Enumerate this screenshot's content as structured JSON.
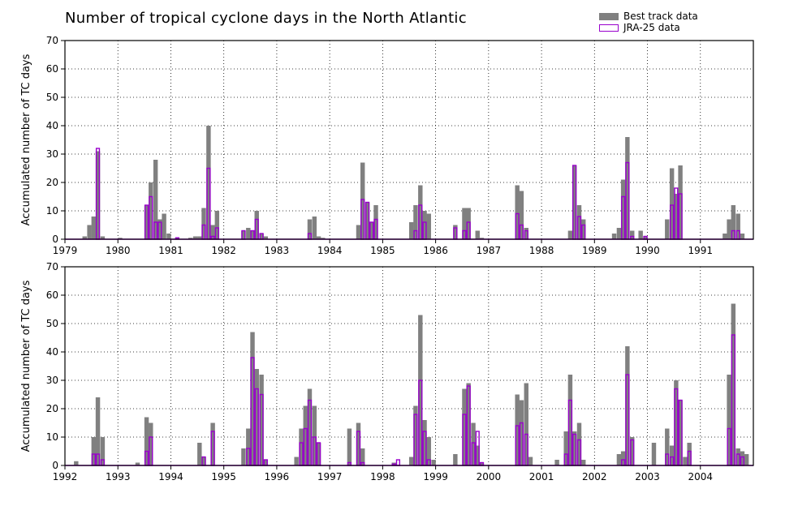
{
  "title": "Number of tropical cyclone days in the North Atlantic",
  "legend": {
    "best_track": "Best track data",
    "jra25": "JRA-25 data"
  },
  "colors": {
    "best_track": "#808080",
    "jra25": "#9900cc",
    "grid": "#000000"
  },
  "chart_data": [
    {
      "type": "bar",
      "title": "Number of tropical cyclone days in the North Atlantic",
      "ylabel": "Accumulated number of TC days",
      "xlabel": "",
      "ylim": [
        0,
        70
      ],
      "yticks": [
        0,
        10,
        20,
        30,
        40,
        50,
        60,
        70
      ],
      "xlim": [
        1979.0,
        1992.0
      ],
      "xticks": [
        "1979",
        "1980",
        "1981",
        "1982",
        "1983",
        "1984",
        "1985",
        "1986",
        "1987",
        "1988",
        "1989",
        "1990",
        "1991"
      ],
      "grid": true,
      "series": [
        {
          "name": "Best track data",
          "points": [
            [
              1979.33,
              1
            ],
            [
              1979.42,
              5
            ],
            [
              1979.5,
              8
            ],
            [
              1979.58,
              31
            ],
            [
              1979.67,
              1
            ],
            [
              1980.0,
              0.5
            ],
            [
              1980.5,
              12
            ],
            [
              1980.58,
              20
            ],
            [
              1980.67,
              28
            ],
            [
              1980.75,
              7
            ],
            [
              1980.83,
              9
            ],
            [
              1980.92,
              2
            ],
            [
              1981.08,
              0.5
            ],
            [
              1981.33,
              0.5
            ],
            [
              1981.42,
              1
            ],
            [
              1981.5,
              1
            ],
            [
              1981.58,
              11
            ],
            [
              1981.67,
              40
            ],
            [
              1981.75,
              5
            ],
            [
              1981.83,
              10
            ],
            [
              1982.33,
              3
            ],
            [
              1982.42,
              4
            ],
            [
              1982.5,
              3
            ],
            [
              1982.58,
              10
            ],
            [
              1982.67,
              2
            ],
            [
              1982.75,
              1
            ],
            [
              1983.58,
              7
            ],
            [
              1983.67,
              8
            ],
            [
              1983.75,
              1
            ],
            [
              1983.83,
              0.5
            ],
            [
              1984.5,
              5
            ],
            [
              1984.58,
              27
            ],
            [
              1984.67,
              13
            ],
            [
              1984.75,
              6
            ],
            [
              1984.83,
              12
            ],
            [
              1985.5,
              6
            ],
            [
              1985.58,
              12
            ],
            [
              1985.67,
              19
            ],
            [
              1985.75,
              10
            ],
            [
              1985.83,
              9
            ],
            [
              1986.33,
              5
            ],
            [
              1986.5,
              11
            ],
            [
              1986.58,
              11
            ],
            [
              1986.75,
              3
            ],
            [
              1986.83,
              0.5
            ],
            [
              1987.5,
              19
            ],
            [
              1987.58,
              17
            ],
            [
              1987.67,
              4
            ],
            [
              1988.5,
              3
            ],
            [
              1988.58,
              26
            ],
            [
              1988.67,
              12
            ],
            [
              1988.75,
              7
            ],
            [
              1989.33,
              2
            ],
            [
              1989.42,
              4
            ],
            [
              1989.5,
              21
            ],
            [
              1989.58,
              36
            ],
            [
              1989.67,
              3
            ],
            [
              1989.83,
              3
            ],
            [
              1989.92,
              1
            ],
            [
              1990.33,
              7
            ],
            [
              1990.42,
              25
            ],
            [
              1990.5,
              16
            ],
            [
              1990.58,
              26
            ],
            [
              1991.42,
              2
            ],
            [
              1991.5,
              7
            ],
            [
              1991.58,
              12
            ],
            [
              1991.67,
              9
            ],
            [
              1991.75,
              2
            ]
          ]
        },
        {
          "name": "JRA-25 data",
          "points": [
            [
              1979.58,
              32
            ],
            [
              1980.5,
              12
            ],
            [
              1980.58,
              15
            ],
            [
              1980.67,
              6
            ],
            [
              1980.75,
              6
            ],
            [
              1981.08,
              0.5
            ],
            [
              1981.58,
              5
            ],
            [
              1981.67,
              25
            ],
            [
              1981.75,
              1
            ],
            [
              1981.83,
              4
            ],
            [
              1982.33,
              3
            ],
            [
              1982.5,
              3
            ],
            [
              1982.58,
              7
            ],
            [
              1982.67,
              2
            ],
            [
              1983.58,
              2
            ],
            [
              1984.58,
              14
            ],
            [
              1984.67,
              13
            ],
            [
              1984.75,
              6
            ],
            [
              1984.83,
              7
            ],
            [
              1985.58,
              3
            ],
            [
              1985.67,
              12
            ],
            [
              1985.75,
              6
            ],
            [
              1986.33,
              4
            ],
            [
              1986.5,
              3
            ],
            [
              1986.58,
              6
            ],
            [
              1987.5,
              9
            ],
            [
              1987.58,
              5
            ],
            [
              1987.67,
              3
            ],
            [
              1988.58,
              26
            ],
            [
              1988.67,
              8
            ],
            [
              1988.75,
              5
            ],
            [
              1989.5,
              15
            ],
            [
              1989.58,
              27
            ],
            [
              1989.67,
              1
            ],
            [
              1989.92,
              1
            ],
            [
              1990.42,
              12
            ],
            [
              1990.5,
              18
            ],
            [
              1990.58,
              16
            ],
            [
              1991.58,
              3
            ],
            [
              1991.67,
              3
            ]
          ]
        }
      ]
    },
    {
      "type": "bar",
      "title": "",
      "ylabel": "Accumulated number of TC days",
      "xlabel": "",
      "ylim": [
        0,
        70
      ],
      "yticks": [
        0,
        10,
        20,
        30,
        40,
        50,
        60,
        70
      ],
      "xlim": [
        1992.0,
        2005.0
      ],
      "xticks": [
        "1992",
        "1993",
        "1994",
        "1995",
        "1996",
        "1997",
        "1998",
        "1999",
        "2000",
        "2001",
        "2002",
        "2003",
        "2004"
      ],
      "grid": true,
      "series": [
        {
          "name": "Best track data",
          "points": [
            [
              1992.17,
              1.5
            ],
            [
              1992.5,
              10
            ],
            [
              1992.58,
              24
            ],
            [
              1992.67,
              10
            ],
            [
              1993.33,
              1
            ],
            [
              1993.5,
              17
            ],
            [
              1993.58,
              15
            ],
            [
              1994.5,
              8
            ],
            [
              1994.58,
              3
            ],
            [
              1994.75,
              15
            ],
            [
              1995.33,
              6
            ],
            [
              1995.42,
              13
            ],
            [
              1995.5,
              47
            ],
            [
              1995.58,
              34
            ],
            [
              1995.67,
              32
            ],
            [
              1995.75,
              2
            ],
            [
              1996.33,
              3
            ],
            [
              1996.42,
              13
            ],
            [
              1996.5,
              21
            ],
            [
              1996.58,
              27
            ],
            [
              1996.67,
              21
            ],
            [
              1996.75,
              8
            ],
            [
              1997.33,
              13
            ],
            [
              1997.5,
              15
            ],
            [
              1997.58,
              6
            ],
            [
              1998.17,
              1
            ],
            [
              1998.5,
              3
            ],
            [
              1998.58,
              21
            ],
            [
              1998.67,
              53
            ],
            [
              1998.75,
              16
            ],
            [
              1998.83,
              10
            ],
            [
              1998.92,
              2
            ],
            [
              1999.33,
              4
            ],
            [
              1999.5,
              27
            ],
            [
              1999.58,
              29
            ],
            [
              1999.67,
              15
            ],
            [
              1999.75,
              7
            ],
            [
              1999.83,
              1
            ],
            [
              2000.5,
              25
            ],
            [
              2000.58,
              23
            ],
            [
              2000.67,
              29
            ],
            [
              2000.75,
              3
            ],
            [
              2001.25,
              2
            ],
            [
              2001.42,
              12
            ],
            [
              2001.5,
              32
            ],
            [
              2001.58,
              12
            ],
            [
              2001.67,
              15
            ],
            [
              2001.75,
              2
            ],
            [
              2002.42,
              4
            ],
            [
              2002.5,
              5
            ],
            [
              2002.58,
              42
            ],
            [
              2002.67,
              10
            ],
            [
              2003.08,
              8
            ],
            [
              2003.33,
              13
            ],
            [
              2003.42,
              7
            ],
            [
              2003.5,
              30
            ],
            [
              2003.58,
              23
            ],
            [
              2003.67,
              3
            ],
            [
              2003.75,
              8
            ],
            [
              2004.5,
              32
            ],
            [
              2004.58,
              57
            ],
            [
              2004.67,
              6
            ],
            [
              2004.75,
              5
            ],
            [
              2004.83,
              4
            ]
          ]
        },
        {
          "name": "JRA-25 data",
          "points": [
            [
              1992.5,
              4
            ],
            [
              1992.58,
              4
            ],
            [
              1992.67,
              2
            ],
            [
              1993.5,
              5
            ],
            [
              1993.58,
              10
            ],
            [
              1994.58,
              3
            ],
            [
              1994.75,
              12
            ],
            [
              1995.42,
              6
            ],
            [
              1995.5,
              38
            ],
            [
              1995.58,
              27
            ],
            [
              1995.67,
              25
            ],
            [
              1995.75,
              2
            ],
            [
              1996.42,
              8
            ],
            [
              1996.5,
              13
            ],
            [
              1996.58,
              23
            ],
            [
              1996.67,
              10
            ],
            [
              1996.75,
              8
            ],
            [
              1997.33,
              1
            ],
            [
              1997.5,
              12
            ],
            [
              1997.58,
              1
            ],
            [
              1998.17,
              0.5
            ],
            [
              1998.25,
              2
            ],
            [
              1998.58,
              18
            ],
            [
              1998.67,
              30
            ],
            [
              1998.75,
              12
            ],
            [
              1998.83,
              2
            ],
            [
              1999.5,
              18
            ],
            [
              1999.58,
              28
            ],
            [
              1999.67,
              8
            ],
            [
              1999.75,
              12
            ],
            [
              1999.83,
              1
            ],
            [
              2000.5,
              14
            ],
            [
              2000.58,
              15
            ],
            [
              2000.67,
              11
            ],
            [
              2001.42,
              4
            ],
            [
              2001.5,
              23
            ],
            [
              2001.58,
              11
            ],
            [
              2001.67,
              9
            ],
            [
              2002.5,
              2
            ],
            [
              2002.58,
              32
            ],
            [
              2002.67,
              9
            ],
            [
              2003.33,
              4
            ],
            [
              2003.42,
              3
            ],
            [
              2003.5,
              27
            ],
            [
              2003.58,
              23
            ],
            [
              2003.75,
              5
            ],
            [
              2004.5,
              13
            ],
            [
              2004.58,
              46
            ],
            [
              2004.67,
              4
            ],
            [
              2004.75,
              3
            ]
          ]
        }
      ]
    }
  ]
}
